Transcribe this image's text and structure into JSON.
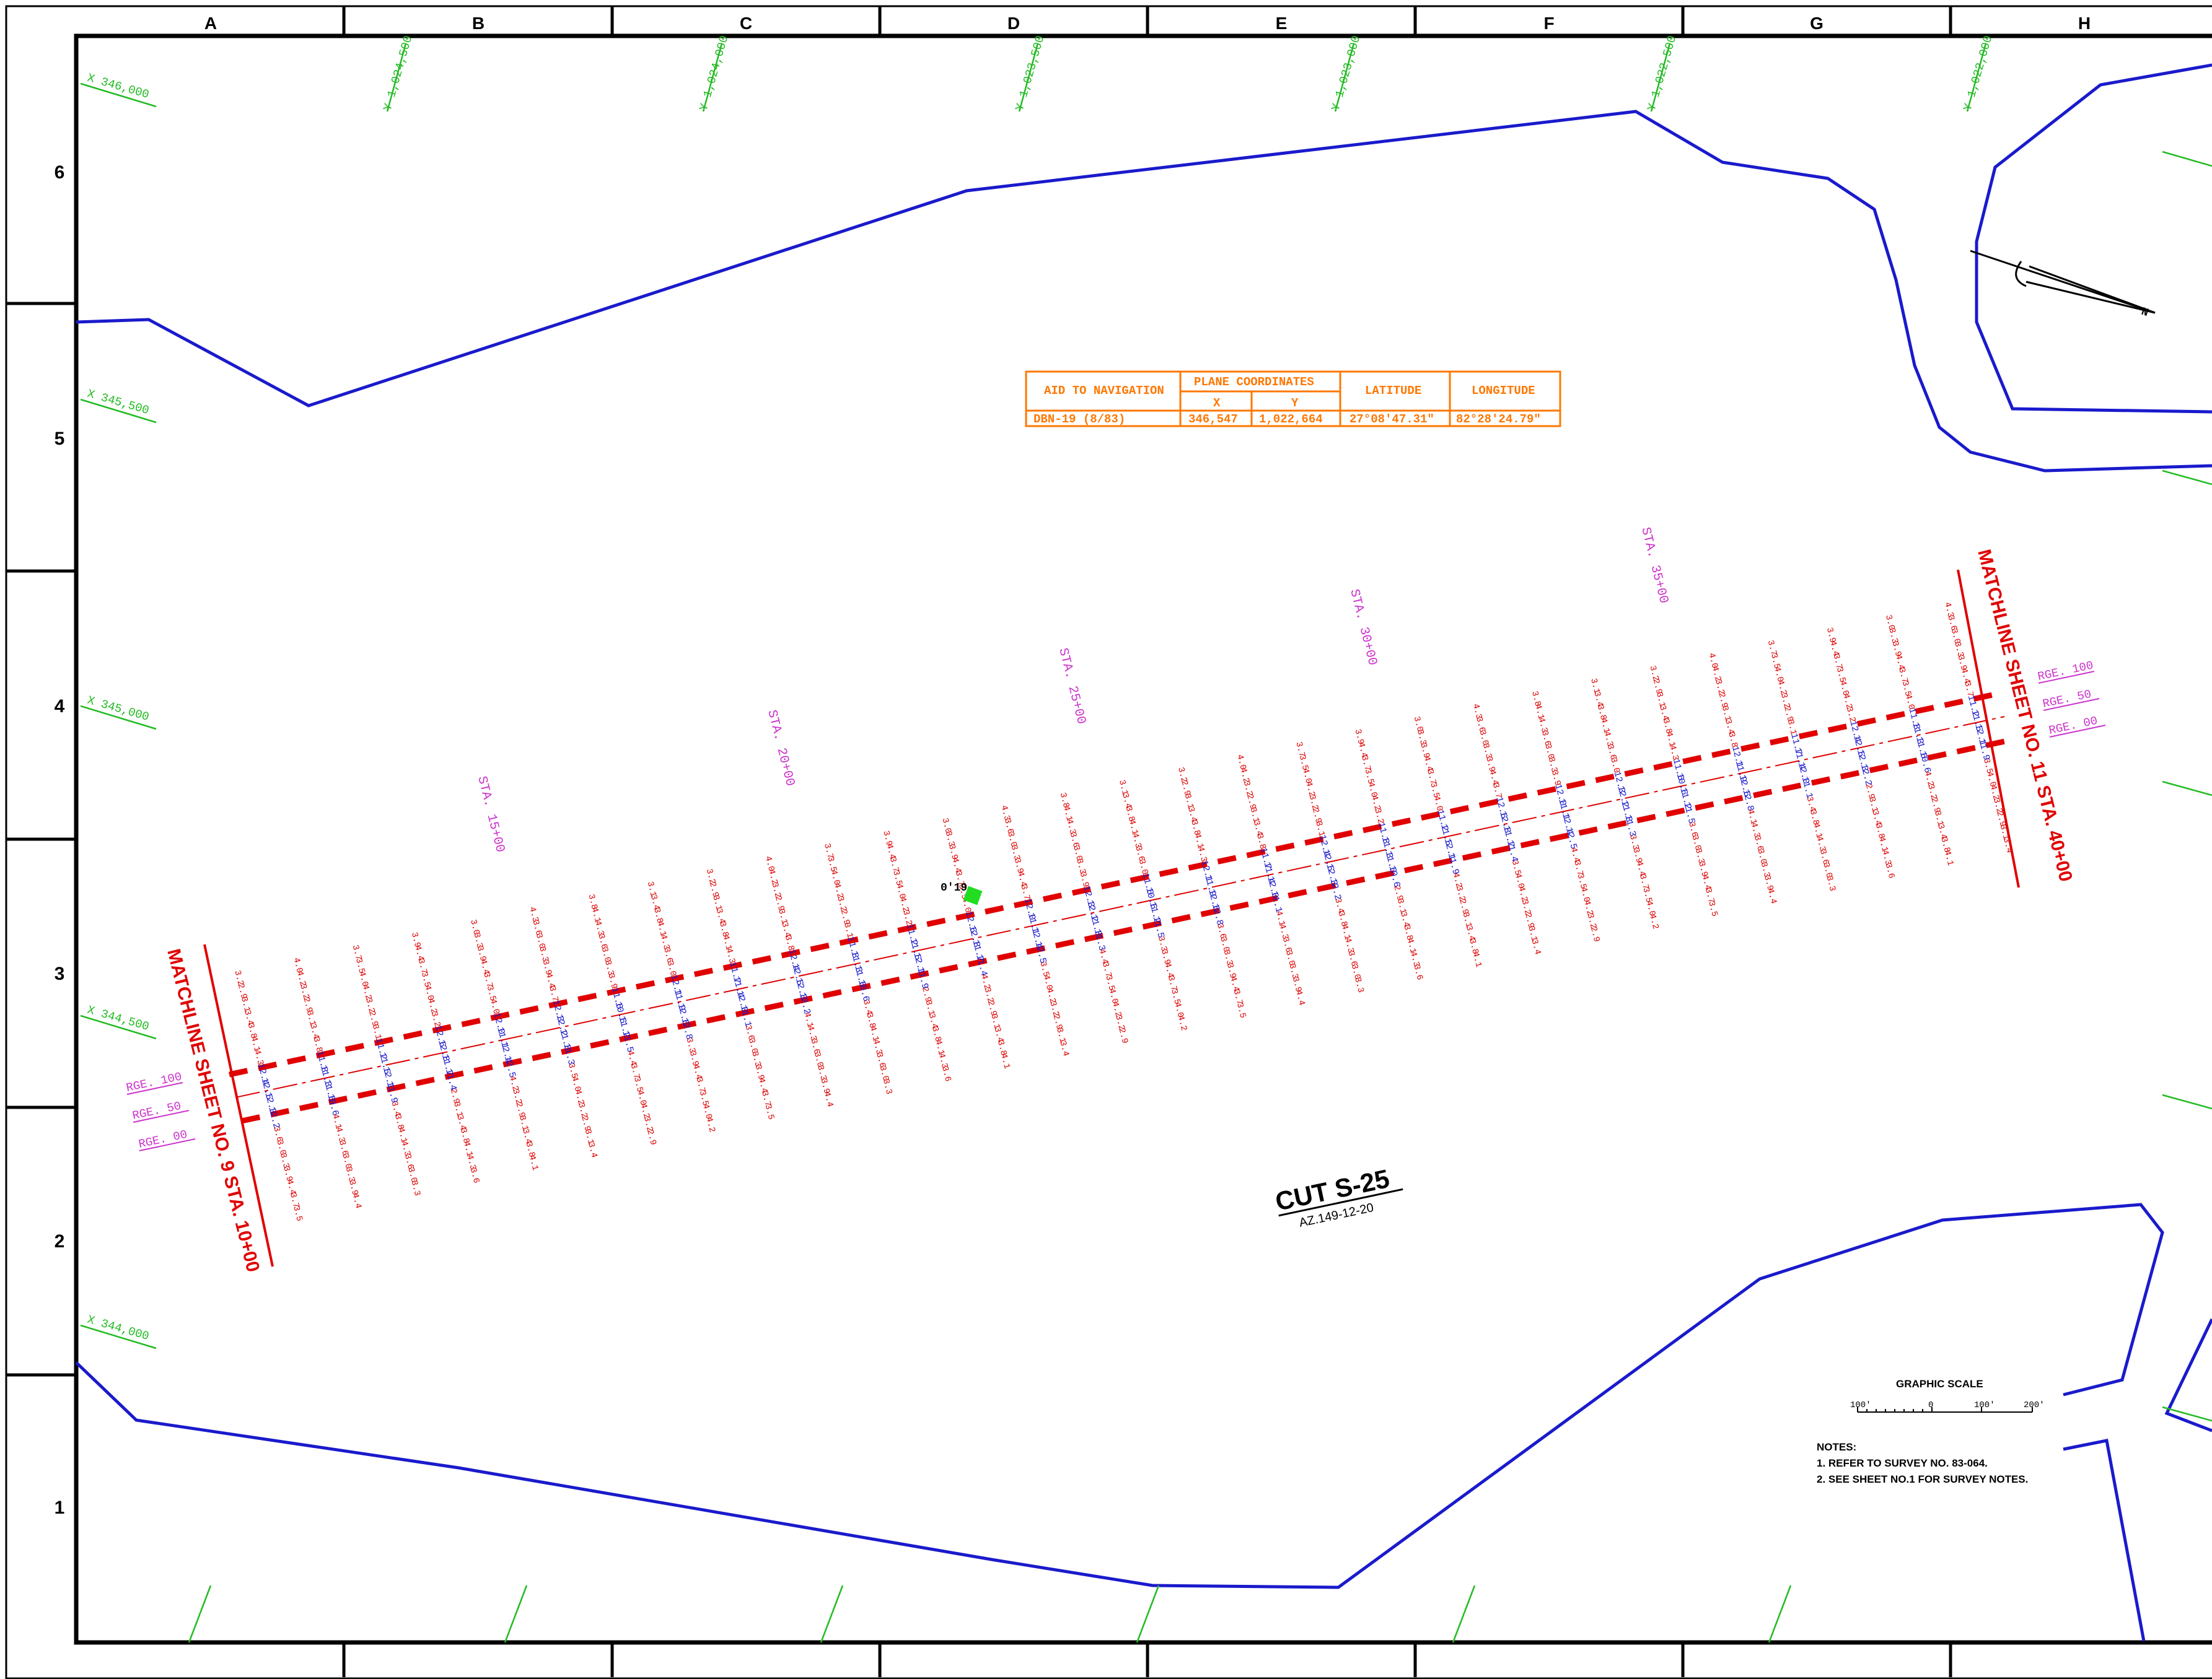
{
  "grid": {
    "columns": [
      "A",
      "B",
      "C",
      "D",
      "E",
      "F",
      "G",
      "H"
    ],
    "rows": [
      "6",
      "5",
      "4",
      "3",
      "2",
      "1"
    ]
  },
  "coordinate_labels": {
    "x": [
      "X 346,000",
      "X 345,500",
      "X 345,000",
      "X 344,500",
      "X 344,000"
    ],
    "y": [
      "Y 1,024,500",
      "Y 1,024,000",
      "Y 1,023,500",
      "Y 1,023,000",
      "Y 1,022,500",
      "Y 1,022,000"
    ]
  },
  "stations": [
    "STA. 15+00",
    "STA. 20+00",
    "STA. 25+00",
    "STA. 30+00",
    "STA. 35+00"
  ],
  "range_labels": {
    "left": [
      "RGE. 100",
      "RGE. 50",
      "RGE. 00"
    ],
    "right": [
      "RGE. 100",
      "RGE. 50",
      "RGE. 00"
    ]
  },
  "matchlines": {
    "left": "MATCHLINE SHEET NO. 9 STA. 10+00",
    "right": "MATCHLINE SHEET NO. 11 STA. 40+00"
  },
  "aid_table": {
    "headers": [
      "AID TO NAVIGATION",
      "PLANE COORDINATES",
      "LATITUDE",
      "LONGITUDE"
    ],
    "subheaders": [
      "X",
      "Y"
    ],
    "row": [
      "DBN-19 (8/83)",
      "346,547",
      "1,022,664",
      "27°08'47.31\"",
      "82°28'24.79\""
    ]
  },
  "beacon_label": "0'19",
  "cut": {
    "title": "CUT S-25",
    "azimuth": "AZ.149-12-20"
  },
  "graphic_scale": {
    "title": "GRAPHIC SCALE",
    "ticks": [
      "100'",
      "0",
      "100'",
      "200'"
    ]
  },
  "notes": {
    "title": "NOTES:",
    "items": [
      "1. REFER TO SURVEY NO. 83-064.",
      "2. SEE SHEET NO.1 FOR SURVEY NOTES."
    ]
  },
  "north_arrow_label": "N",
  "colors": {
    "shoreline": "#1a1acc",
    "channel": "#e00000",
    "coordinates": "#22bb22",
    "stations": "#cc33cc",
    "table": "#ff7700",
    "beacon": "#22dd22"
  },
  "soundings": {
    "red": [
      "3.2",
      "2.9",
      "3.1",
      "3.4",
      "3.8",
      "4.1",
      "4.3",
      "3.6",
      "3.0",
      "3.3",
      "3.9",
      "4.4",
      "3.7",
      "3.5",
      "4.0",
      "4.2",
      "3.2",
      "2.9",
      "3.1",
      "3.4",
      "3.8",
      "4.1",
      "4.3",
      "3.6",
      "3.0",
      "3.3",
      "3.9",
      "4.4",
      "3.7",
      "3.5",
      "4.0",
      "4.2",
      "3.2",
      "2.9",
      "3.1",
      "3.4",
      "3.8",
      "4.1",
      "4.3",
      "3.6",
      "3.0",
      "3.3",
      "3.9",
      "4.4",
      "3.7",
      "3.5",
      "4.0",
      "4.2",
      "3.2",
      "2.9",
      "3.1",
      "3.4",
      "3.8",
      "4.1",
      "4.3",
      "3.6",
      "3.0",
      "3.3",
      "3.9",
      "4.4",
      "3.7",
      "3.5",
      "4.0",
      "4.2",
      "3.2",
      "2.9",
      "3.1",
      "3.4",
      "3.8",
      "4.1",
      "4.3",
      "3.6",
      "3.0",
      "3.3",
      "3.9",
      "4.4",
      "3.7",
      "3.5",
      "4.0",
      "4.2",
      "3.2",
      "2.9",
      "3.1",
      "3.4",
      "3.8",
      "4.1",
      "4.3",
      "3.6",
      "3.0",
      "3.3",
      "3.9",
      "4.4",
      "3.7",
      "3.5",
      "4.0",
      "4.2",
      "3.2",
      "2.9",
      "3.1",
      "3.4",
      "3.8",
      "4.1",
      "4.3",
      "3.6",
      "3.0",
      "3.3",
      "3.9",
      "4.4",
      "3.7",
      "3.5",
      "4.0",
      "4.2",
      "3.2",
      "2.9",
      "3.1",
      "3.4",
      "3.8",
      "4.1",
      "4.3",
      "3.6",
      "3.0",
      "3.3",
      "3.9",
      "4.4",
      "3.7",
      "3.5",
      "4.0",
      "4.2"
    ],
    "blue": [
      "12.4",
      "12.5",
      "12.3",
      "12.2",
      "11.8",
      "11.3",
      "11.6",
      "10.6",
      "11.2",
      "11.5",
      "12.1",
      "11.9",
      "12.6",
      "12.8",
      "11.7",
      "11.4",
      "12.0",
      "11.1",
      "12.4",
      "12.5",
      "12.3",
      "12.2",
      "11.8",
      "11.3",
      "11.6",
      "10.6",
      "11.2",
      "11.5",
      "12.1",
      "11.9",
      "12.6",
      "12.8",
      "11.7",
      "11.4",
      "12.0",
      "11.1",
      "12.4",
      "12.5",
      "12.3",
      "12.2",
      "11.8",
      "11.3",
      "11.6",
      "10.6",
      "11.2",
      "11.5",
      "12.1",
      "11.9",
      "12.6",
      "12.8",
      "11.7",
      "11.4",
      "12.0",
      "11.1",
      "12.4",
      "12.5",
      "12.3",
      "12.2",
      "11.8",
      "11.3",
      "11.6",
      "10.6",
      "11.2",
      "11.5",
      "12.1",
      "11.9",
      "12.6",
      "12.8",
      "11.7",
      "11.4",
      "12.0",
      "11.1"
    ]
  }
}
